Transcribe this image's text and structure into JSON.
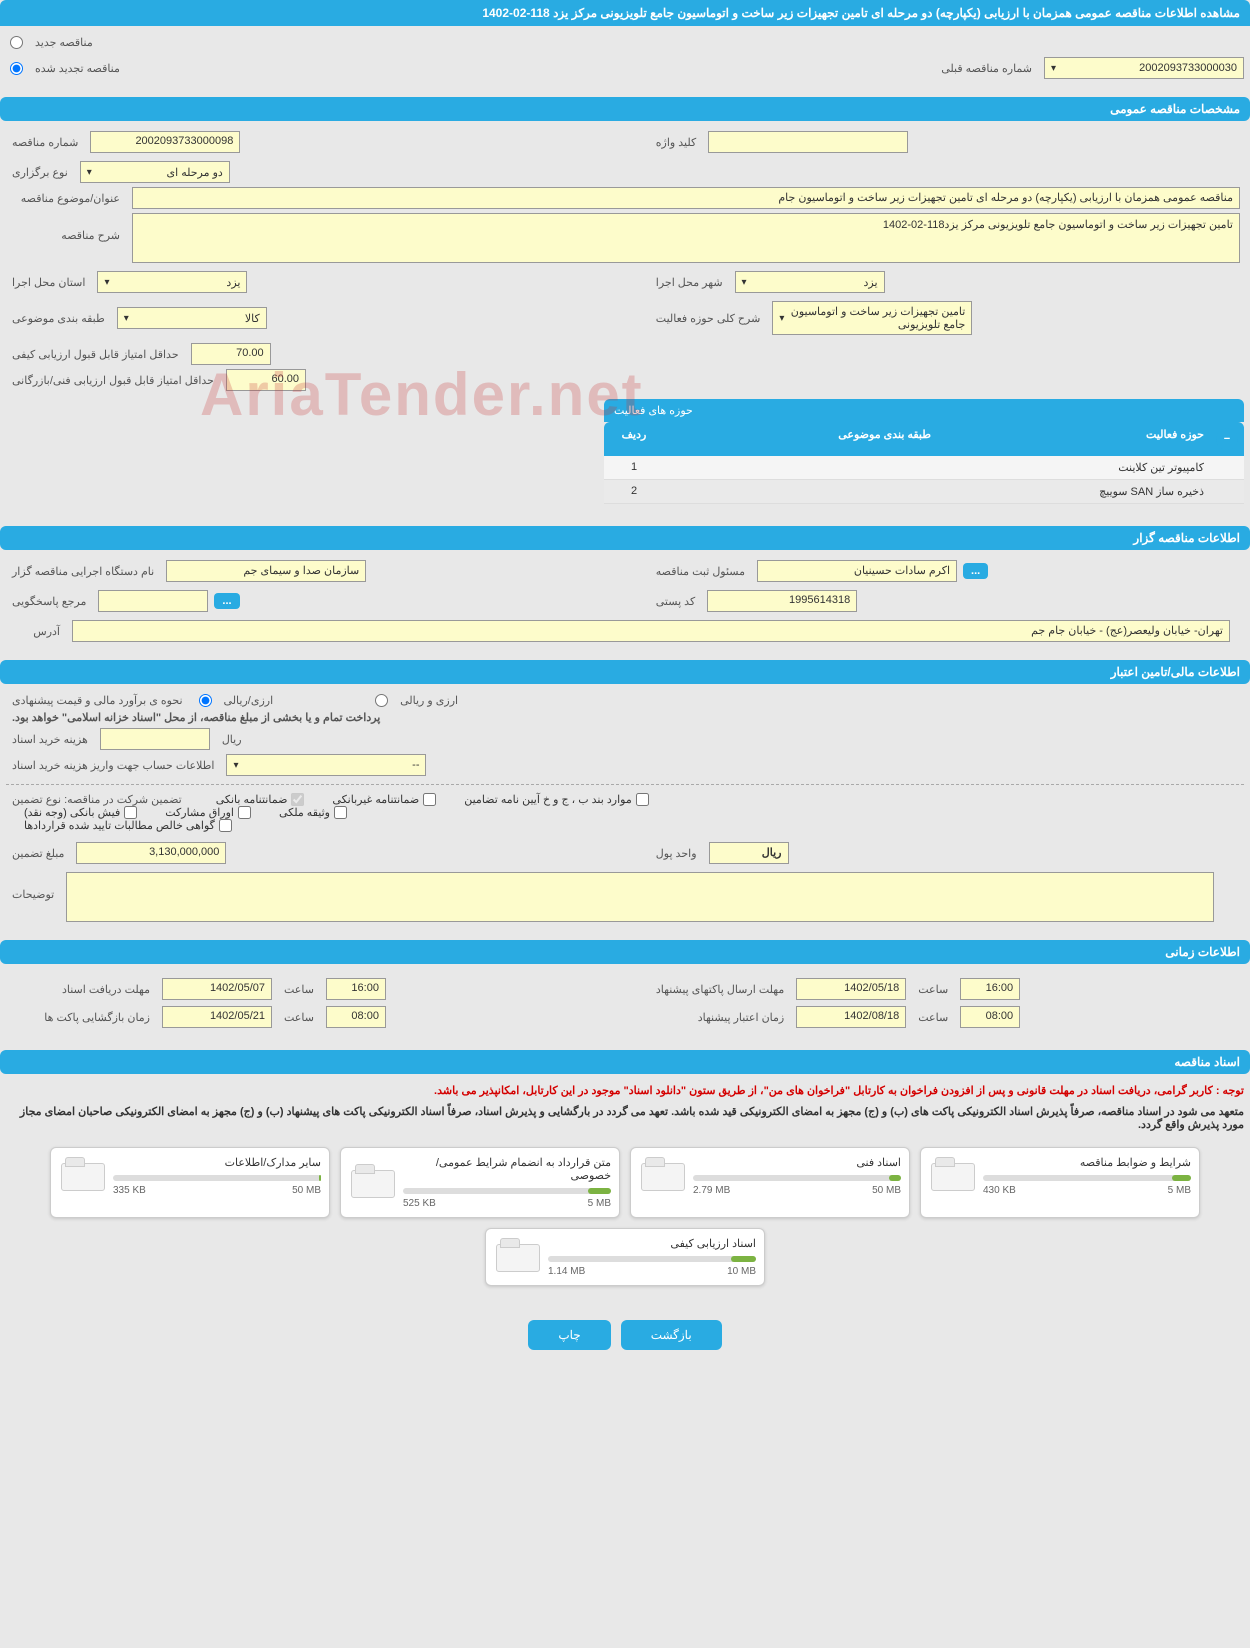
{
  "header": {
    "title": "مشاهده اطلاعات مناقصه عمومی همزمان با ارزیابی (یکپارچه) دو مرحله ای تامین تجهیزات زیر ساخت و اتوماسیون جامع تلویزیونی مرکز یزد 118-02-1402"
  },
  "top_radios": {
    "new": "مناقصه جدید",
    "renewed": "مناقصه تجدید شده",
    "prev_label": "شماره مناقصه قبلی",
    "prev_value": "2002093733000030"
  },
  "sections": {
    "general": "مشخصات مناقصه عمومی",
    "org": "اطلاعات مناقصه گزار",
    "finance": "اطلاعات مالی/تامین اعتبار",
    "time": "اطلاعات زمانی",
    "docs": "اسناد مناقصه"
  },
  "general": {
    "tender_no_label": "شماره مناقصه",
    "tender_no": "2002093733000098",
    "keyword_label": "کلید واژه",
    "keyword": "",
    "type_label": "نوع برگزاری",
    "type": "دو مرحله ای",
    "subject_label": "عنوان/موضوع مناقصه",
    "subject": "مناقصه عمومی همزمان با ارزیابی (یکپارچه) دو مرحله ای تامین تجهیزات زیر ساخت و اتوماسیون جام",
    "desc_label": "شرح مناقصه",
    "desc": "تامین تجهیزات زیر ساخت و اتوماسیون جامع تلویزیونی مرکز یزد118-02-1402",
    "province_label": "استان محل اجرا",
    "province": "یزد",
    "city_label": "شهر محل اجرا",
    "city": "یزد",
    "category_label": "طبقه بندی موضوعی",
    "category": "کالا",
    "activity_scope_label": "شرح کلی حوزه فعالیت",
    "activity_scope": "تامین تجهیزات زیر ساخت و اتوماسیون جامع تلویزیونی",
    "min_quality_label": "حداقل امتیاز قابل قبول ارزیابی کیفی",
    "min_quality": "70.00",
    "min_tech_label": "حداقل امتیاز قابل قبول ارزیابی فنی/بازرگانی",
    "min_tech": "60.00"
  },
  "activity_table": {
    "title": "حوزه های فعالیت",
    "cols": {
      "idx": "ردیف",
      "cat": "طبقه بندی موضوعی",
      "field": "حوزه فعالیت"
    },
    "rows": [
      {
        "idx": "1",
        "cat": "",
        "field": "کامپیوتر تین کلاینت"
      },
      {
        "idx": "2",
        "cat": "",
        "field": "ذخیره ساز SAN سوییچ"
      }
    ]
  },
  "org": {
    "exec_label": "نام دستگاه اجرایی مناقصه گزار",
    "exec": "سازمان صدا و سیمای جم",
    "reg_label": "مسئول ثبت مناقصه",
    "reg": "اکرم سادات حسینیان",
    "ref_label": "مرجع پاسخگویی",
    "ref": "",
    "postal_label": "کد پستی",
    "postal": "1995614318",
    "address_label": "آدرس",
    "address": "تهران- خیابان ولیعصر(عج) - خیابان جام جم"
  },
  "finance": {
    "method_label": "نحوه ی برآورد مالی و قیمت پیشنهادی",
    "opt_rial": "ارزی/ریالی",
    "opt_currency": "ارزی و ریالی",
    "note": "پرداخت تمام و یا بخشی از مبلغ مناقصه، از محل \"اسناد خزانه اسلامی\" خواهد بود.",
    "doc_cost_label": "هزینه خرید اسناد",
    "doc_cost_unit": "ریال",
    "account_label": "اطلاعات حساب جهت واریز هزینه خرید اسناد",
    "account": "--",
    "guarantee_type_label": "تضمین شرکت در مناقصه:   نوع تضمین",
    "g1": "ضمانتنامه بانکی",
    "g2": "ضمانتنامه غیربانکی",
    "g3": "موارد بند ب ، ج و خ آیین نامه تضامین",
    "g4": "فیش بانکی (وجه نقد)",
    "g5": "اوراق مشارکت",
    "g6": "وثیقه ملکی",
    "g7": "گواهی خالص مطالبات تایید شده قراردادها",
    "amount_label": "مبلغ تضمین",
    "amount": "3,130,000,000",
    "unit_label": "واحد پول",
    "unit": "ریال",
    "remarks_label": "توضیحات"
  },
  "time": {
    "receive_label": "مهلت دریافت اسناد",
    "receive_date": "1402/05/07",
    "receive_time_label": "ساعت",
    "receive_time": "16:00",
    "send_label": "مهلت ارسال پاکتهای پیشنهاد",
    "send_date": "1402/05/18",
    "send_time_label": "ساعت",
    "send_time": "16:00",
    "open_label": "زمان بازگشایی پاکت ها",
    "open_date": "1402/05/21",
    "open_time_label": "ساعت",
    "open_time": "08:00",
    "valid_label": "زمان اعتبار پیشنهاد",
    "valid_date": "1402/08/18",
    "valid_time_label": "ساعت",
    "valid_time": "08:00"
  },
  "docs": {
    "notice1": "توجه : کاربر گرامی، دریافت اسناد در مهلت قانونی و پس از افزودن فراخوان به کارتابل \"فراخوان های من\"، از طریق ستون \"دانلود اسناد\" موجود در این کارتابل، امکانپذیر می باشد.",
    "notice2": "متعهد می شود در اسناد مناقصه، صرفاً پذیرش اسناد الکترونیکی پاکت های (ب) و (ج) مجهز به امضای الکترونیکی قید شده باشد. تعهد می گردد در بارگشایی و پذیرش اسناد، صرفاً اسناد الکترونیکی پاکت های پیشنهاد (ب) و (ج) مجهز به امضای الکترونیکی صاحبان امضای مجاز مورد پذیرش واقع گردد.",
    "cards": [
      {
        "title": "شرایط و ضوابط مناقصه",
        "used": "430 KB",
        "total": "5 MB",
        "pct": 9
      },
      {
        "title": "اسناد فنی",
        "used": "2.79 MB",
        "total": "50 MB",
        "pct": 6
      },
      {
        "title": "متن قرارداد به انضمام شرایط عمومی/خصوصی",
        "used": "525 KB",
        "total": "5 MB",
        "pct": 11
      },
      {
        "title": "سایر مدارک/اطلاعات",
        "used": "335 KB",
        "total": "50 MB",
        "pct": 1
      },
      {
        "title": "اسناد ارزیابی کیفی",
        "used": "1.14 MB",
        "total": "10 MB",
        "pct": 12
      }
    ]
  },
  "buttons": {
    "back": "بازگشت",
    "print": "چاپ"
  },
  "watermark": "AriaTender.net"
}
